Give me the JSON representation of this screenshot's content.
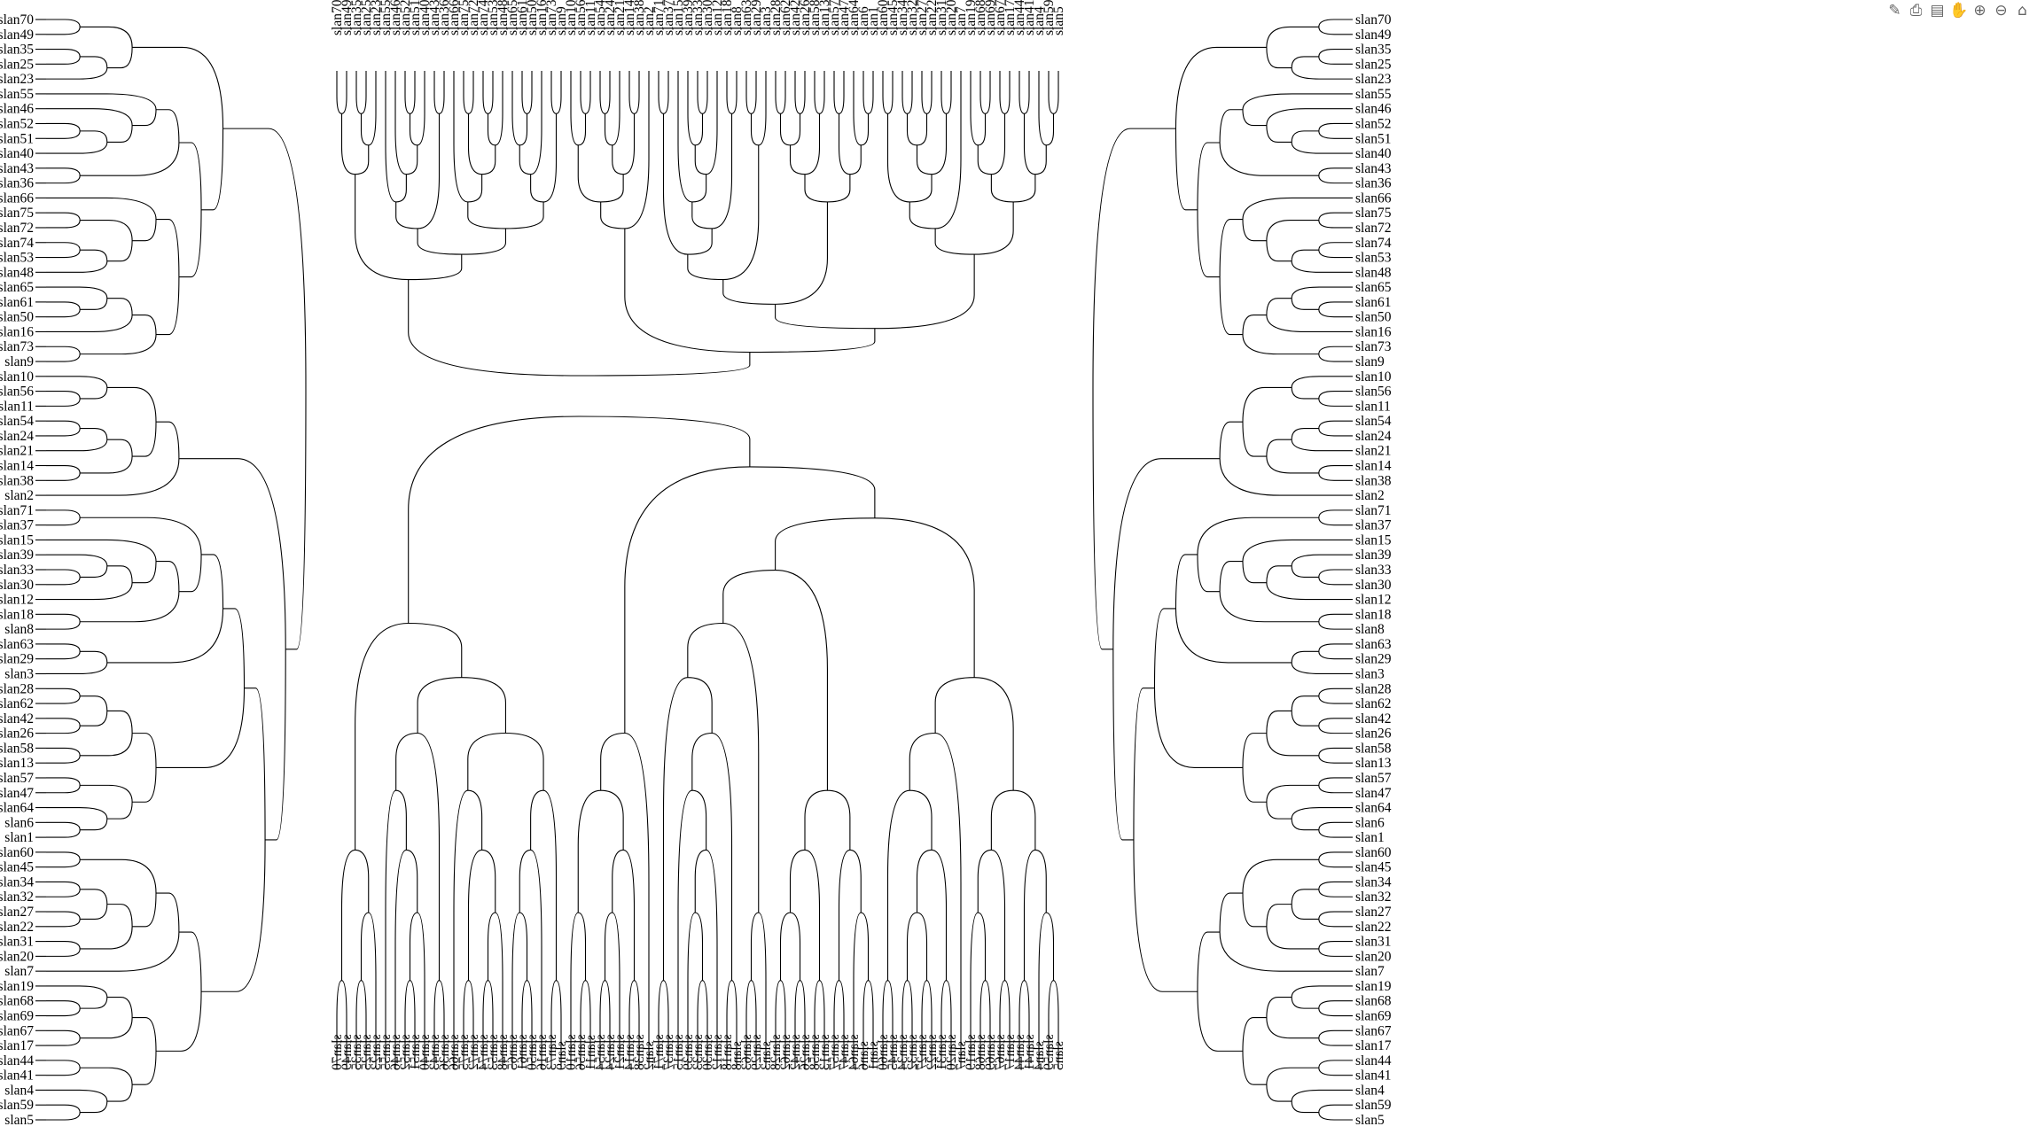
{
  "toolbar": {
    "icons": [
      "annotate-icon",
      "print-icon",
      "save-icon",
      "pan-icon",
      "zoom-in-icon",
      "zoom-out-icon",
      "home-icon"
    ],
    "glyphs": [
      "✎",
      "⎙",
      "▤",
      "✋",
      "⊕",
      "⊖",
      "⌂"
    ]
  },
  "chart_data": {
    "type": "dendrogram",
    "title": "",
    "panels": [
      "left",
      "top",
      "bottom",
      "right"
    ],
    "leaf_order": [
      "slan70",
      "slan49",
      "slan35",
      "slan25",
      "slan23",
      "slan55",
      "slan46",
      "slan52",
      "slan51",
      "slan40",
      "slan43",
      "slan36",
      "slan66",
      "slan75",
      "slan72",
      "slan74",
      "slan53",
      "slan48",
      "slan65",
      "slan61",
      "slan50",
      "slan16",
      "slan73",
      "slan9",
      "slan10",
      "slan56",
      "slan11",
      "slan54",
      "slan24",
      "slan21",
      "slan14",
      "slan38",
      "slan2",
      "slan71",
      "slan37",
      "slan15",
      "slan39",
      "slan33",
      "slan30",
      "slan12",
      "slan18",
      "slan8",
      "slan63",
      "slan29",
      "slan3",
      "slan28",
      "slan62",
      "slan42",
      "slan26",
      "slan58",
      "slan13",
      "slan57",
      "slan47",
      "slan64",
      "slan6",
      "slan1",
      "slan60",
      "slan45",
      "slan34",
      "slan32",
      "slan27",
      "slan22",
      "slan31",
      "slan20",
      "slan7",
      "slan19",
      "slan68",
      "slan69",
      "slan67",
      "slan17",
      "slan44",
      "slan41",
      "slan4",
      "slan59",
      "slan5"
    ],
    "tree": [
      [
        [
          [
            "slan70",
            "slan49"
          ],
          [
            [
              "slan35",
              "slan25"
            ],
            "slan23"
          ]
        ],
        [
          [
            [
              "slan55",
              [
                "slan46",
                [
                  [
                    "slan52",
                    "slan51"
                  ],
                  "slan40"
                ]
              ]
            ],
            [
              "slan43",
              "slan36"
            ]
          ],
          [
            [
              "slan66",
              [
                [
                  "slan75",
                  "slan72"
                ],
                [
                  [
                    "slan74",
                    "slan53"
                  ],
                  "slan48"
                ]
              ]
            ],
            [
              [
                [
                  "slan65",
                  [
                    "slan61",
                    "slan50"
                  ]
                ],
                "slan16"
              ],
              [
                "slan73",
                "slan9"
              ]
            ]
          ]
        ]
      ],
      [
        [
          [
            [
              "slan10",
              [
                "slan56",
                "slan11"
              ]
            ],
            [
              [
                [
                  "slan54",
                  "slan24"
                ],
                "slan21"
              ],
              [
                "slan14",
                "slan38"
              ]
            ]
          ],
          "slan2"
        ],
        [
          [
            [
              [
                [
                  "slan71",
                  "slan37"
                ],
                [
                  [
                    "slan15",
                    [
                      [
                        "slan39",
                        [
                          "slan33",
                          "slan30"
                        ]
                      ],
                      "slan12"
                    ]
                  ],
                  [
                    "slan18",
                    "slan8"
                  ]
                ]
              ],
              [
                [
                  "slan63",
                  "slan29"
                ],
                "slan3"
              ]
            ],
            [
              [
                [
                  [
                    "slan28",
                    "slan62"
                  ],
                  [
                    "slan42",
                    "slan26"
                  ]
                ],
                [
                  "slan58",
                  "slan13"
                ]
              ],
              [
                [
                  "slan57",
                  "slan47"
                ],
                [
                  "slan64",
                  [
                    "slan6",
                    "slan1"
                  ]
                ]
              ]
            ]
          ],
          [
            [
              [
                [
                  "slan60",
                  "slan45"
                ],
                [
                  [
                    [
                      "slan34",
                      "slan32"
                    ],
                    [
                      "slan27",
                      "slan22"
                    ]
                  ],
                  [
                    "slan31",
                    "slan20"
                  ]
                ]
              ],
              "slan7"
            ],
            [
              [
                [
                  "slan19",
                  [
                    "slan68",
                    "slan69"
                  ]
                ],
                [
                  "slan67",
                  "slan17"
                ]
              ],
              [
                [
                  "slan44",
                  "slan41"
                ],
                [
                  "slan4",
                  [
                    "slan59",
                    "slan5"
                  ]
                ]
              ]
            ]
          ]
        ]
      ]
    ]
  }
}
